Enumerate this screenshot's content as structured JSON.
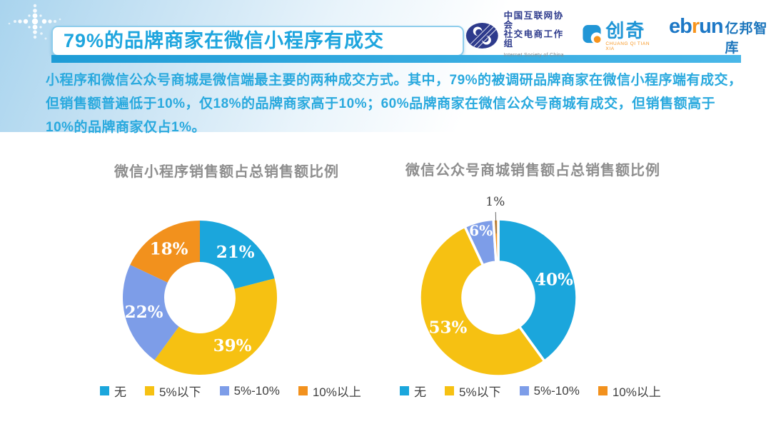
{
  "header": {
    "title": "79%的品牌商家在微信小程序有成交"
  },
  "logos": {
    "isc": {
      "line1": "中国互联网协会",
      "line2": "社交电商工作组",
      "line3": "Internet Society of China",
      "color": "#2d3a8c"
    },
    "chuangqi": {
      "name": "创奇",
      "caption": "CHUANG QI TIAN XIA",
      "color": "#2196d6",
      "accent": "#f7941d"
    },
    "ebrun": {
      "part1": "eb",
      "part2": "r",
      "part3": "un",
      "suffix": "亿邦智库",
      "color": "#1d78c6",
      "accent": "#f7941d"
    }
  },
  "intro": "小程序和微信公众号商城是微信端最主要的两种成交方式。其中，79%的被调研品牌商家在微信小程序端有成交，但销售额普遍低于10%，仅18%的品牌商家高于10%；60%品牌商家在微信公众号商城有成交，但销售额高于10%的品牌商家仅占1%。",
  "palette": {
    "accent_cyan": "#29a9de",
    "title_underline": "#2ea7dc",
    "chart_title_gray": "#8e8e8e",
    "legend_text": "#3f3f3f",
    "outside_label": "#3c3c3c"
  },
  "chart_data": [
    {
      "type": "pie",
      "donut": true,
      "title": "微信小程序销售额占总销售额比例",
      "labels": [
        "无",
        "5%以下",
        "5%-10%",
        "10%以上"
      ],
      "values": [
        21,
        39,
        22,
        18
      ],
      "data_labels": [
        "21%",
        "39%",
        "22%",
        "18%"
      ],
      "colors": [
        "#1ba6dc",
        "#f6c112",
        "#7d9de8",
        "#f2911d"
      ],
      "start_angle_deg": 0,
      "direction": "clockwise",
      "slice_gap": false,
      "legend_position": "bottom"
    },
    {
      "type": "pie",
      "donut": true,
      "title": "微信公众号商城销售额占总销售额比例",
      "labels": [
        "无",
        "5%以下",
        "5%-10%",
        "10%以上"
      ],
      "values": [
        40,
        53,
        6,
        1
      ],
      "data_labels": [
        "40%",
        "53%",
        "6%",
        "1%"
      ],
      "colors": [
        "#1ba6dc",
        "#f6c112",
        "#7d9de8",
        "#f2911d"
      ],
      "start_angle_deg": 0,
      "direction": "clockwise",
      "slice_gap": true,
      "legend_position": "bottom"
    }
  ]
}
